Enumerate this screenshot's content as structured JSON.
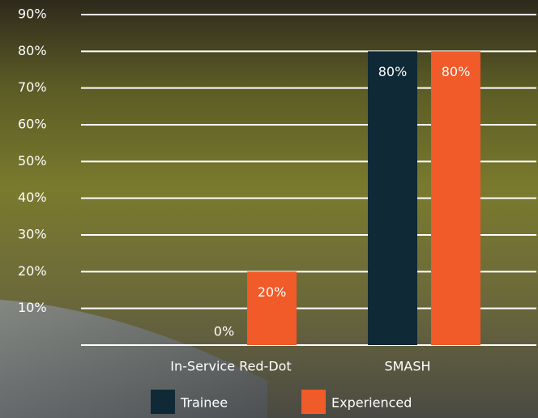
{
  "chart_data": {
    "type": "bar",
    "categories": [
      "In-Service Red-Dot",
      "SMASH"
    ],
    "series": [
      {
        "name": "Trainee",
        "color": "#0f2a36",
        "values": [
          0,
          80
        ],
        "value_labels": [
          "0%",
          "80%"
        ]
      },
      {
        "name": "Experienced",
        "color": "#f15a29",
        "values": [
          20,
          80
        ],
        "value_labels": [
          "20%",
          "80%"
        ]
      }
    ],
    "ylim": [
      0,
      90
    ],
    "yticks": [
      {
        "value": 10,
        "label": "10%"
      },
      {
        "value": 20,
        "label": "20%"
      },
      {
        "value": 30,
        "label": "30%"
      },
      {
        "value": 40,
        "label": "40%"
      },
      {
        "value": 50,
        "label": "50%"
      },
      {
        "value": 60,
        "label": "60%"
      },
      {
        "value": 70,
        "label": "70%"
      },
      {
        "value": 80,
        "label": "80%"
      },
      {
        "value": 90,
        "label": "90%"
      }
    ],
    "grid": true
  }
}
